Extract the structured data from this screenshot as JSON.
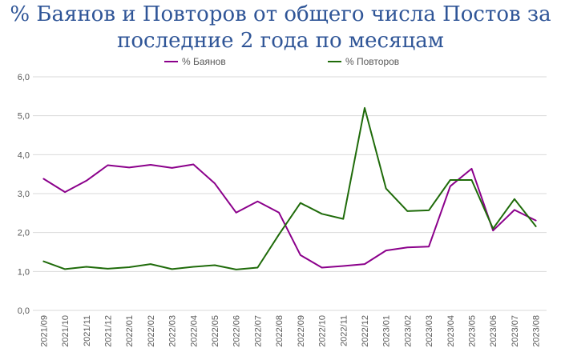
{
  "chart_data": {
    "type": "line",
    "title_lines": [
      "% Баянов и Повторов от общего числа Постов за",
      "последние 2 года по месяцам"
    ],
    "xlabel": "",
    "ylabel": "",
    "ylim": [
      0,
      6
    ],
    "yticks": [
      "0,0",
      "1,0",
      "2,0",
      "3,0",
      "4,0",
      "5,0",
      "6,0"
    ],
    "grid": true,
    "legend_position": "top",
    "categories": [
      "2021/09",
      "2021/10",
      "2021/11",
      "2021/12",
      "2022/01",
      "2022/02",
      "2022/03",
      "2022/04",
      "2022/05",
      "2022/06",
      "2022/07",
      "2022/08",
      "2022/09",
      "2022/10",
      "2022/11",
      "2022/12",
      "2023/01",
      "2023/02",
      "2023/03",
      "2023/04",
      "2023/05",
      "2023/06",
      "2023/07",
      "2023/08"
    ],
    "series": [
      {
        "name": "% Баянов",
        "color": "#8b008b",
        "values": [
          3.38,
          3.04,
          3.33,
          3.73,
          3.67,
          3.74,
          3.66,
          3.75,
          3.26,
          2.51,
          2.8,
          2.51,
          1.42,
          1.1,
          1.14,
          1.19,
          1.54,
          1.62,
          1.64,
          3.19,
          3.64,
          2.05,
          2.58,
          2.31
        ]
      },
      {
        "name": "% Повторов",
        "color": "#1f6b0a",
        "values": [
          1.26,
          1.06,
          1.12,
          1.07,
          1.11,
          1.19,
          1.06,
          1.12,
          1.16,
          1.05,
          1.1,
          1.95,
          2.76,
          2.48,
          2.35,
          5.2,
          3.13,
          2.55,
          2.57,
          3.35,
          3.35,
          2.1,
          2.86,
          2.16
        ]
      }
    ]
  }
}
